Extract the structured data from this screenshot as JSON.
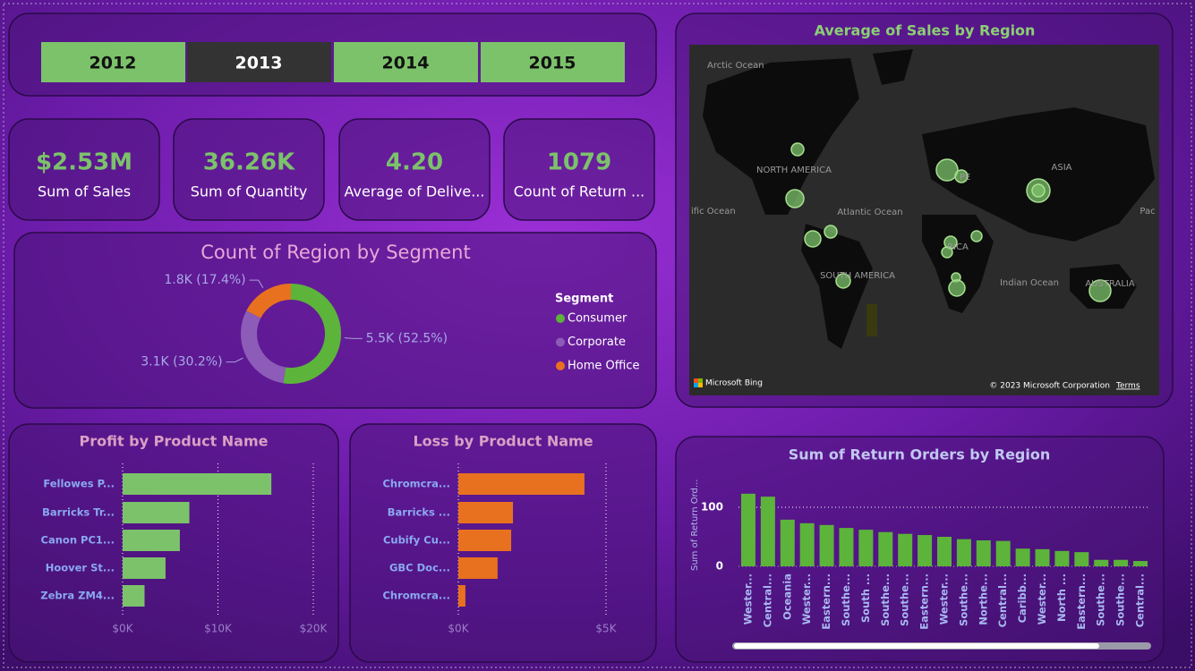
{
  "slicer": {
    "items": [
      "2012",
      "2013",
      "2014",
      "2015"
    ],
    "selected_index": 1
  },
  "cards": [
    {
      "value": "$2.53M",
      "label": "Sum of Sales"
    },
    {
      "value": "36.26K",
      "label": "Sum of Quantity"
    },
    {
      "value": "4.20",
      "label": "Average of Delive..."
    },
    {
      "value": "1079",
      "label": "Count of Return ..."
    }
  ],
  "map": {
    "title": "Average of Sales by Region",
    "labels": [
      "Arctic Ocean",
      "NORTH AMERICA",
      "Atlantic Ocean",
      "ific Ocean",
      "Pac",
      "SOUTH AMERICA",
      "PE",
      "ASIA",
      "RICA",
      "Indian Ocean",
      "AUSTRALIA"
    ],
    "credits": [
      "Microsoft Bing",
      "© 2023 Microsoft Corporation",
      "Terms"
    ]
  },
  "chart_data": [
    {
      "type": "donut",
      "title": "Count of Region by Segment",
      "legend_title": "Segment",
      "categories": [
        "Consumer",
        "Corporate",
        "Home Office"
      ],
      "values": [
        52.5,
        30.2,
        17.4
      ],
      "value_labels": [
        "5.5K (52.5%)",
        "3.1K (30.2%)",
        "1.8K (17.4%)"
      ],
      "colors": [
        "#5cb43a",
        "#8c5cb8",
        "#e8711f"
      ],
      "legend": "right"
    },
    {
      "type": "bar",
      "orientation": "horizontal",
      "title": "Profit by Product Name",
      "categories": [
        "Fellowes P...",
        "Barricks Tr...",
        "Canon PC1...",
        "Hoover St...",
        "Zebra ZM4..."
      ],
      "values": [
        15600,
        7000,
        6000,
        4500,
        2300
      ],
      "color": "#7cc26a",
      "xlim": [
        0,
        20000
      ],
      "xticks": [
        {
          "value": 0,
          "label": "$0K"
        },
        {
          "value": 10000,
          "label": "$10K"
        },
        {
          "value": 20000,
          "label": "$20K"
        }
      ],
      "grid": true
    },
    {
      "type": "bar",
      "orientation": "horizontal",
      "title": "Loss by Product Name",
      "categories": [
        "Chromcra...",
        "Barricks ...",
        "Cubify Cu...",
        "GBC Doc...",
        "Chromcra..."
      ],
      "values": [
        4270,
        1850,
        1790,
        1330,
        240
      ],
      "color": "#e8711f",
      "xlim": [
        0,
        5000
      ],
      "xticks": [
        {
          "value": 0,
          "label": "$0K"
        },
        {
          "value": 5000,
          "label": "$5K"
        }
      ],
      "grid": true
    },
    {
      "type": "bar",
      "orientation": "vertical",
      "title": "Sum of Return Orders by Region",
      "y_label": "Sum of Return Ord...",
      "categories": [
        "Wester...",
        "Central...",
        "Oceania",
        "Wester...",
        "Eastern...",
        "Southe...",
        "South ...",
        "Southe...",
        "Southe...",
        "Eastern...",
        "Wester...",
        "Southe...",
        "Northe...",
        "Central...",
        "Caribb...",
        "Wester...",
        "North ...",
        "Eastern...",
        "Southe...",
        "Southe...",
        "Central..."
      ],
      "values": [
        123,
        118,
        79,
        73,
        70,
        65,
        62,
        58,
        55,
        53,
        50,
        46,
        44,
        43,
        30,
        29,
        26,
        24,
        11,
        11,
        9
      ],
      "color": "#5cb43a",
      "ylim": [
        0,
        140
      ],
      "yticks": [
        0,
        100
      ],
      "grid": true
    }
  ]
}
